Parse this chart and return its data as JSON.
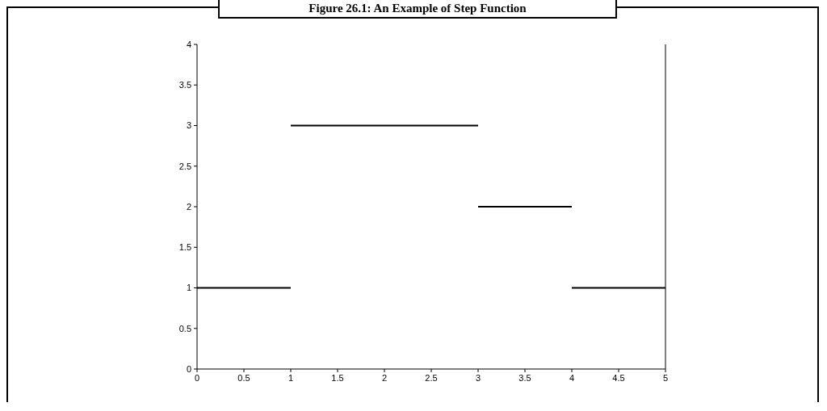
{
  "chart_data": {
    "type": "line",
    "title": "Figure 26.1: An Example of Step Function",
    "series": [
      {
        "color": "#000000",
        "x": [
          0,
          1
        ],
        "values": [
          1,
          1
        ]
      },
      {
        "color": "#000000",
        "x": [
          1,
          3
        ],
        "values": [
          3,
          3
        ]
      },
      {
        "color": "#000000",
        "x": [
          3,
          4
        ],
        "values": [
          2,
          2
        ]
      },
      {
        "color": "#000000",
        "x": [
          4,
          5
        ],
        "values": [
          1,
          1
        ]
      }
    ],
    "xlim": [
      0,
      5
    ],
    "xticks": [
      0,
      0.5,
      1,
      1.5,
      2,
      2.5,
      3,
      3.5,
      4,
      4.5,
      5
    ],
    "ylim": [
      0,
      4
    ],
    "yticks": [
      0,
      0.5,
      1,
      1.5,
      2,
      2.5,
      3,
      3.5,
      4
    ],
    "grid": false,
    "marker": "none",
    "line_style": "solid"
  }
}
